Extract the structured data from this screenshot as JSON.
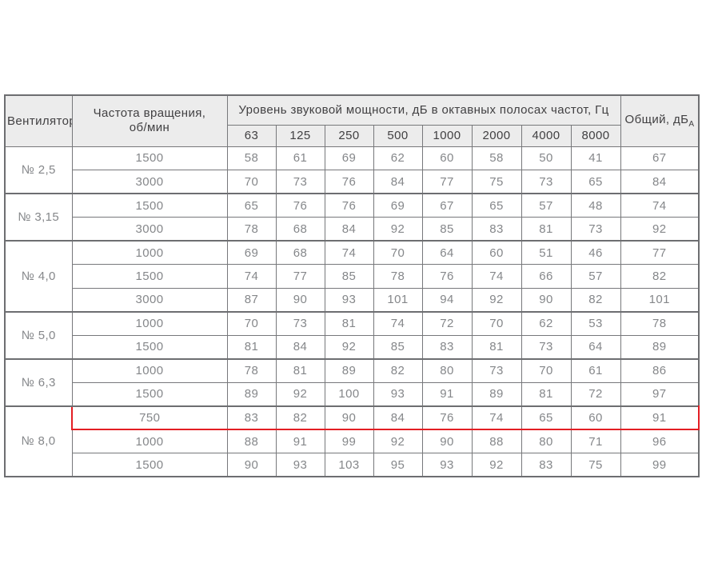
{
  "table": {
    "header": {
      "fan": "Вентилятор",
      "rpm_line1": "Частота вращения,",
      "rpm_line2": "об/мин",
      "group": "Уровень звуковой мощности, дБ в октавных полосах частот, Гц",
      "frequencies": [
        "63",
        "125",
        "250",
        "500",
        "1000",
        "2000",
        "4000",
        "8000"
      ],
      "total_label": "Общий, дБ",
      "total_sub": "А"
    },
    "groups": [
      {
        "fan": "№ 2,5",
        "rows": [
          {
            "rpm": "1500",
            "levels": [
              58,
              61,
              69,
              62,
              60,
              58,
              50,
              41
            ],
            "total": 67
          },
          {
            "rpm": "3000",
            "levels": [
              70,
              73,
              76,
              84,
              77,
              75,
              73,
              65
            ],
            "total": 84
          }
        ]
      },
      {
        "fan": "№ 3,15",
        "rows": [
          {
            "rpm": "1500",
            "levels": [
              65,
              76,
              76,
              69,
              67,
              65,
              57,
              48
            ],
            "total": 74
          },
          {
            "rpm": "3000",
            "levels": [
              78,
              68,
              84,
              92,
              85,
              83,
              81,
              73
            ],
            "total": 92
          }
        ]
      },
      {
        "fan": "№ 4,0",
        "rows": [
          {
            "rpm": "1000",
            "levels": [
              69,
              68,
              74,
              70,
              64,
              60,
              51,
              46
            ],
            "total": 77
          },
          {
            "rpm": "1500",
            "levels": [
              74,
              77,
              85,
              78,
              76,
              74,
              66,
              57
            ],
            "total": 82
          },
          {
            "rpm": "3000",
            "levels": [
              87,
              90,
              93,
              101,
              94,
              92,
              90,
              82
            ],
            "total": 101
          }
        ]
      },
      {
        "fan": "№ 5,0",
        "rows": [
          {
            "rpm": "1000",
            "levels": [
              70,
              73,
              81,
              74,
              72,
              70,
              62,
              53
            ],
            "total": 78
          },
          {
            "rpm": "1500",
            "levels": [
              81,
              84,
              92,
              85,
              83,
              81,
              73,
              64
            ],
            "total": 89
          }
        ]
      },
      {
        "fan": "№ 6,3",
        "rows": [
          {
            "rpm": "1000",
            "levels": [
              78,
              81,
              89,
              82,
              80,
              73,
              70,
              61
            ],
            "total": 86
          },
          {
            "rpm": "1500",
            "levels": [
              89,
              92,
              100,
              93,
              91,
              89,
              81,
              72
            ],
            "total": 97
          }
        ]
      },
      {
        "fan": "№ 8,0",
        "rows": [
          {
            "rpm": "750",
            "levels": [
              83,
              82,
              90,
              84,
              76,
              74,
              65,
              60
            ],
            "total": 91,
            "highlighted": true
          },
          {
            "rpm": "1000",
            "levels": [
              88,
              91,
              99,
              92,
              90,
              88,
              80,
              71
            ],
            "total": 96
          },
          {
            "rpm": "1500",
            "levels": [
              90,
              93,
              103,
              95,
              93,
              92,
              83,
              75
            ],
            "total": 99
          }
        ]
      }
    ],
    "colors": {
      "header_background": "#ececec",
      "header_text": "#414042",
      "body_text": "#85878a",
      "border": "#6d6e71",
      "highlight": "#e31e24"
    }
  }
}
